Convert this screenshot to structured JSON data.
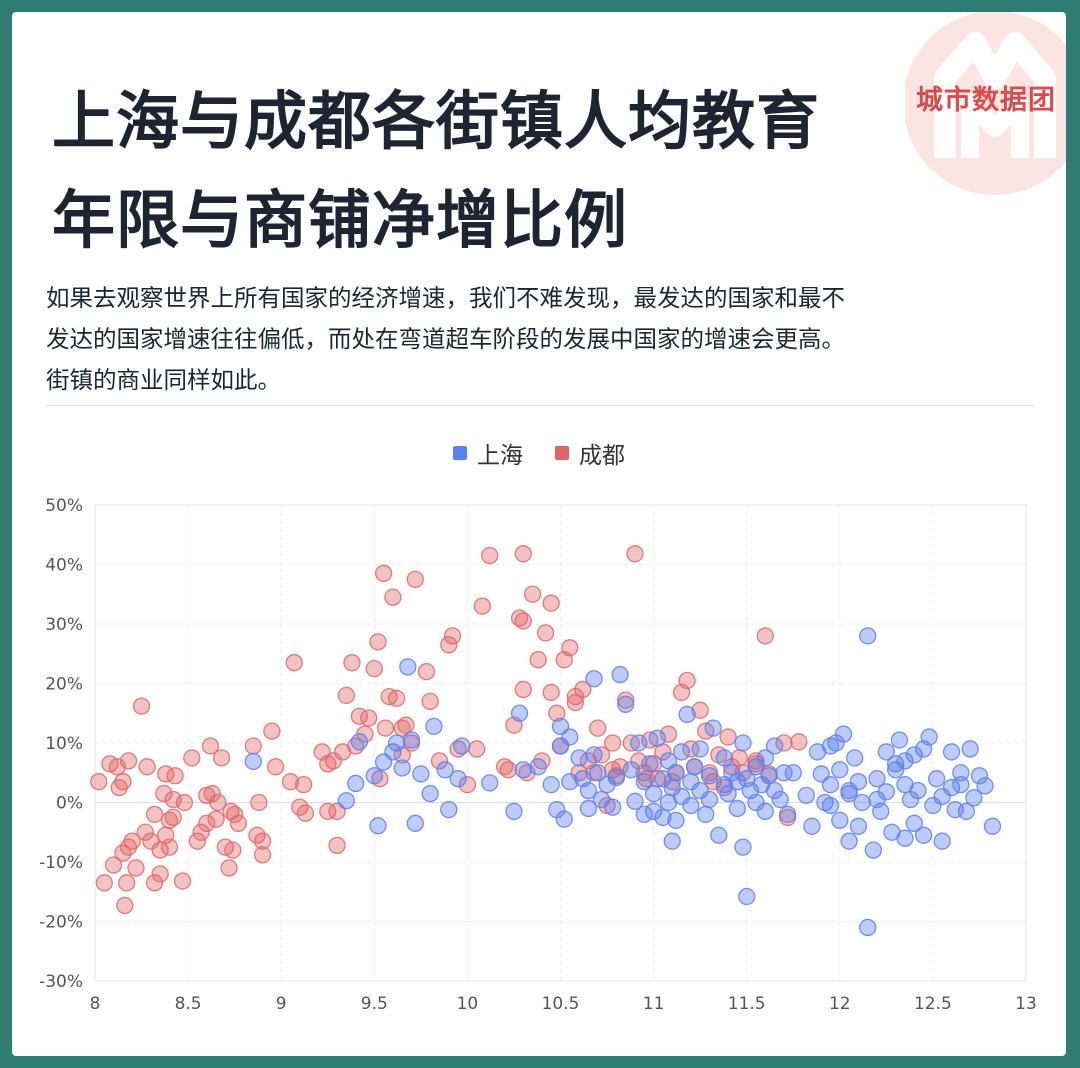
{
  "header": {
    "title_line1": "上海与成都各街镇人均教育",
    "title_line2": "年限与商铺净增比例",
    "brand": "城市数据团",
    "intro_line1": "如果去观察世界上所有国家的经济增速，我们不难发现，最发达的国家和最不",
    "intro_line2": "发达的国家增速往往偏低，而处在弯道超车阶段的发展中国家的增速会更高。",
    "intro_line3": "街镇的商业同样如此。"
  },
  "colors": {
    "shanghai": "#5a7ff0",
    "chengdu": "#e06666",
    "background": "#2e7d72"
  },
  "chart_data": {
    "type": "scatter",
    "legend_position": "top-center",
    "grid": true,
    "xlim": [
      8,
      13
    ],
    "ylim": [
      -30,
      50
    ],
    "x_ticks": [
      "8",
      "8.5",
      "9",
      "9.5",
      "10",
      "10.5",
      "11",
      "11.5",
      "12",
      "12.5",
      "13"
    ],
    "y_ticks": [
      "50%",
      "40%",
      "30%",
      "20%",
      "10%",
      "0%",
      "-10%",
      "-20%",
      "-30%"
    ],
    "series": [
      {
        "name": "上海",
        "color": "#5a7ff0",
        "points": [
          [
            8.85,
            6.9
          ],
          [
            9.35,
            0.3
          ],
          [
            9.4,
            3.2
          ],
          [
            9.42,
            10.2
          ],
          [
            9.5,
            4.5
          ],
          [
            9.52,
            -3.9
          ],
          [
            9.55,
            6.8
          ],
          [
            9.6,
            8.5
          ],
          [
            9.62,
            10
          ],
          [
            9.65,
            5.8
          ],
          [
            9.68,
            22.8
          ],
          [
            9.7,
            10.5
          ],
          [
            9.72,
            -3.5
          ],
          [
            9.75,
            4.8
          ],
          [
            9.8,
            1.5
          ],
          [
            9.82,
            12.8
          ],
          [
            9.88,
            5.5
          ],
          [
            9.9,
            -1.2
          ],
          [
            9.95,
            4
          ],
          [
            9.97,
            9.5
          ],
          [
            10.12,
            3.3
          ],
          [
            10.25,
            -1.5
          ],
          [
            10.28,
            15
          ],
          [
            10.3,
            5.5
          ],
          [
            10.38,
            6
          ],
          [
            10.45,
            3
          ],
          [
            10.48,
            -1.2
          ],
          [
            10.5,
            9.5
          ],
          [
            10.5,
            12.8
          ],
          [
            10.52,
            -2.8
          ],
          [
            10.55,
            11
          ],
          [
            10.55,
            3.5
          ],
          [
            10.6,
            7.5
          ],
          [
            10.62,
            4
          ],
          [
            10.65,
            -1
          ],
          [
            10.65,
            2
          ],
          [
            10.68,
            8
          ],
          [
            10.68,
            20.8
          ],
          [
            10.7,
            5
          ],
          [
            10.72,
            0.5
          ],
          [
            10.75,
            3
          ],
          [
            10.78,
            -0.8
          ],
          [
            10.8,
            4.2
          ],
          [
            10.82,
            21.5
          ],
          [
            10.85,
            16.5
          ],
          [
            10.88,
            5.5
          ],
          [
            10.9,
            0.2
          ],
          [
            10.92,
            10
          ],
          [
            10.95,
            -2
          ],
          [
            10.95,
            3.5
          ],
          [
            10.98,
            6.5
          ],
          [
            11.0,
            1.5
          ],
          [
            11.0,
            -1.5
          ],
          [
            11.02,
            10.8
          ],
          [
            11.05,
            4
          ],
          [
            11.05,
            -2.5
          ],
          [
            11.08,
            7
          ],
          [
            11.08,
            0
          ],
          [
            11.1,
            2.5
          ],
          [
            11.1,
            -6.5
          ],
          [
            11.12,
            5
          ],
          [
            11.12,
            -3
          ],
          [
            11.15,
            8.5
          ],
          [
            11.15,
            1
          ],
          [
            11.18,
            14.8
          ],
          [
            11.2,
            3.5
          ],
          [
            11.2,
            -0.5
          ],
          [
            11.22,
            6
          ],
          [
            11.25,
            2
          ],
          [
            11.25,
            9
          ],
          [
            11.28,
            -2
          ],
          [
            11.3,
            4.5
          ],
          [
            11.3,
            0.5
          ],
          [
            11.32,
            12.5
          ],
          [
            11.35,
            -5.5
          ],
          [
            11.38,
            3
          ],
          [
            11.38,
            7.5
          ],
          [
            11.4,
            1.5
          ],
          [
            11.42,
            5
          ],
          [
            11.45,
            -1
          ],
          [
            11.45,
            3.5
          ],
          [
            11.48,
            -7.5
          ],
          [
            11.48,
            10
          ],
          [
            11.5,
            4
          ],
          [
            11.5,
            -15.8
          ],
          [
            11.52,
            2
          ],
          [
            11.55,
            6
          ],
          [
            11.55,
            0
          ],
          [
            11.58,
            3
          ],
          [
            11.6,
            7.5
          ],
          [
            11.6,
            -1.5
          ],
          [
            11.62,
            4.5
          ],
          [
            11.65,
            9.5
          ],
          [
            11.65,
            2
          ],
          [
            11.68,
            0.5
          ],
          [
            11.7,
            5
          ],
          [
            11.72,
            -2
          ],
          [
            11.75,
            5
          ],
          [
            11.82,
            1.2
          ],
          [
            11.85,
            -4
          ],
          [
            11.88,
            8.5
          ],
          [
            11.9,
            4.8
          ],
          [
            11.92,
            0
          ],
          [
            11.95,
            9.5
          ],
          [
            11.95,
            3
          ],
          [
            11.98,
            10
          ],
          [
            12.0,
            -3
          ],
          [
            12.0,
            5.5
          ],
          [
            12.02,
            11.5
          ],
          [
            12.05,
            -6.5
          ],
          [
            12.05,
            1.5
          ],
          [
            12.08,
            7.5
          ],
          [
            12.1,
            -4
          ],
          [
            12.1,
            3.5
          ],
          [
            12.12,
            0
          ],
          [
            12.15,
            28
          ],
          [
            12.15,
            -21
          ],
          [
            12.18,
            -8
          ],
          [
            12.2,
            4
          ],
          [
            12.22,
            -1.5
          ],
          [
            12.25,
            8.5
          ],
          [
            12.25,
            1.8
          ],
          [
            12.28,
            -5
          ],
          [
            12.3,
            5.5
          ],
          [
            12.32,
            10.5
          ],
          [
            12.35,
            3
          ],
          [
            12.35,
            -6
          ],
          [
            12.38,
            0.5
          ],
          [
            12.4,
            8
          ],
          [
            12.42,
            2
          ],
          [
            12.45,
            -5.5
          ],
          [
            12.48,
            11
          ],
          [
            12.5,
            -0.5
          ],
          [
            12.52,
            4
          ],
          [
            12.55,
            1
          ],
          [
            12.6,
            8.5
          ],
          [
            12.62,
            -1.2
          ],
          [
            12.65,
            3
          ],
          [
            12.7,
            9
          ],
          [
            12.75,
            4.5
          ],
          [
            12.78,
            2.8
          ],
          [
            12.82,
            -4
          ],
          [
            12.55,
            -6.5
          ],
          [
            12.45,
            9
          ],
          [
            12.6,
            2.5
          ],
          [
            12.4,
            -3.5
          ],
          [
            12.3,
            6.5
          ],
          [
            12.68,
            -1.5
          ],
          [
            12.72,
            0.8
          ],
          [
            12.2,
            0.5
          ],
          [
            11.95,
            -0.5
          ],
          [
            12.65,
            5
          ],
          [
            12.35,
            7
          ],
          [
            12.05,
            2
          ]
        ]
      },
      {
        "name": "成都",
        "color": "#e06666",
        "points": [
          [
            8.02,
            3.5
          ],
          [
            8.05,
            -13.5
          ],
          [
            8.08,
            6.5
          ],
          [
            8.1,
            -10.5
          ],
          [
            8.12,
            6
          ],
          [
            8.13,
            2.5
          ],
          [
            8.15,
            -8.5
          ],
          [
            8.15,
            3.5
          ],
          [
            8.16,
            -17.3
          ],
          [
            8.17,
            -13.5
          ],
          [
            8.18,
            -7.5
          ],
          [
            8.18,
            7
          ],
          [
            8.2,
            -6.5
          ],
          [
            8.22,
            -11
          ],
          [
            8.25,
            16.2
          ],
          [
            8.27,
            -5
          ],
          [
            8.28,
            6
          ],
          [
            8.3,
            -6.5
          ],
          [
            8.32,
            -2
          ],
          [
            8.32,
            -13.5
          ],
          [
            8.35,
            -8
          ],
          [
            8.35,
            -12
          ],
          [
            8.37,
            1.5
          ],
          [
            8.38,
            -5.5
          ],
          [
            8.38,
            4.8
          ],
          [
            8.4,
            -3
          ],
          [
            8.4,
            -7.5
          ],
          [
            8.42,
            0.5
          ],
          [
            8.42,
            -2.5
          ],
          [
            8.43,
            4.5
          ],
          [
            8.47,
            -13.2
          ],
          [
            8.48,
            0
          ],
          [
            8.52,
            7.5
          ],
          [
            8.55,
            -6.5
          ],
          [
            8.57,
            -5
          ],
          [
            8.6,
            1.2
          ],
          [
            8.6,
            -3.5
          ],
          [
            8.62,
            9.5
          ],
          [
            8.63,
            1.5
          ],
          [
            8.65,
            -2.8
          ],
          [
            8.66,
            0
          ],
          [
            8.68,
            7.5
          ],
          [
            8.7,
            -7.5
          ],
          [
            8.72,
            -11
          ],
          [
            8.73,
            -1.5
          ],
          [
            8.74,
            -8
          ],
          [
            8.75,
            -2
          ],
          [
            8.77,
            -3.5
          ],
          [
            8.85,
            9.5
          ],
          [
            8.87,
            -5.5
          ],
          [
            8.88,
            0
          ],
          [
            8.9,
            -6.5
          ],
          [
            8.9,
            -8.8
          ],
          [
            8.95,
            12
          ],
          [
            8.97,
            6
          ],
          [
            9.05,
            3.5
          ],
          [
            9.07,
            23.5
          ],
          [
            9.1,
            -0.8
          ],
          [
            9.12,
            3
          ],
          [
            9.13,
            -1.8
          ],
          [
            9.22,
            8.5
          ],
          [
            9.25,
            6.5
          ],
          [
            9.25,
            -1.5
          ],
          [
            9.28,
            7
          ],
          [
            9.3,
            -7.2
          ],
          [
            9.3,
            -1.5
          ],
          [
            9.33,
            8.5
          ],
          [
            9.35,
            18
          ],
          [
            9.38,
            23.5
          ],
          [
            9.4,
            9.5
          ],
          [
            9.42,
            14.5
          ],
          [
            9.45,
            11.5
          ],
          [
            9.47,
            14.2
          ],
          [
            9.5,
            22.5
          ],
          [
            9.52,
            27
          ],
          [
            9.53,
            4
          ],
          [
            9.55,
            38.5
          ],
          [
            9.56,
            12.5
          ],
          [
            9.58,
            17.8
          ],
          [
            9.6,
            34.5
          ],
          [
            9.62,
            17.5
          ],
          [
            9.65,
            8
          ],
          [
            9.67,
            13
          ],
          [
            9.7,
            10
          ],
          [
            9.72,
            37.5
          ],
          [
            9.78,
            22
          ],
          [
            9.8,
            17
          ],
          [
            9.85,
            7
          ],
          [
            9.9,
            26.5
          ],
          [
            9.92,
            28
          ],
          [
            9.95,
            9
          ],
          [
            10.0,
            3
          ],
          [
            10.05,
            9
          ],
          [
            10.08,
            33
          ],
          [
            10.12,
            41.5
          ],
          [
            10.2,
            6
          ],
          [
            10.22,
            5.5
          ],
          [
            10.25,
            13
          ],
          [
            10.28,
            31
          ],
          [
            10.3,
            30.5
          ],
          [
            10.3,
            41.8
          ],
          [
            10.3,
            19
          ],
          [
            10.35,
            35
          ],
          [
            10.38,
            24
          ],
          [
            10.4,
            7
          ],
          [
            10.42,
            28.5
          ],
          [
            10.45,
            33.5
          ],
          [
            10.45,
            18.5
          ],
          [
            10.48,
            15
          ],
          [
            10.5,
            9.5
          ],
          [
            10.52,
            24
          ],
          [
            10.55,
            26
          ],
          [
            10.58,
            16.8
          ],
          [
            10.6,
            5
          ],
          [
            10.62,
            19
          ],
          [
            10.65,
            7
          ],
          [
            10.68,
            5
          ],
          [
            10.7,
            12.5
          ],
          [
            10.72,
            8
          ],
          [
            10.75,
            -0.5
          ],
          [
            10.78,
            10
          ],
          [
            10.8,
            4.5
          ],
          [
            10.82,
            6
          ],
          [
            10.85,
            17.2
          ],
          [
            10.88,
            10
          ],
          [
            10.9,
            41.8
          ],
          [
            10.92,
            7
          ],
          [
            10.95,
            5
          ],
          [
            10.98,
            10.5
          ],
          [
            11.0,
            6.5
          ],
          [
            11.02,
            4
          ],
          [
            11.05,
            8.5
          ],
          [
            11.08,
            11.5
          ],
          [
            11.1,
            3.5
          ],
          [
            11.12,
            5
          ],
          [
            11.15,
            18.5
          ],
          [
            11.18,
            20.5
          ],
          [
            11.2,
            9
          ],
          [
            11.22,
            6
          ],
          [
            11.25,
            15.5
          ],
          [
            11.28,
            12
          ],
          [
            11.3,
            5
          ],
          [
            11.32,
            3.5
          ],
          [
            11.35,
            8
          ],
          [
            11.4,
            11
          ],
          [
            11.42,
            6
          ],
          [
            11.48,
            5
          ],
          [
            11.55,
            6.5
          ],
          [
            11.6,
            28
          ],
          [
            11.62,
            4.8
          ],
          [
            11.7,
            10
          ],
          [
            11.72,
            -2.5
          ],
          [
            11.78,
            10.2
          ],
          [
            11.55,
            7
          ],
          [
            10.96,
            4
          ],
          [
            11.38,
            2.5
          ],
          [
            10.58,
            17.8
          ],
          [
            9.65,
            12.5
          ],
          [
            11.46,
            7.5
          ],
          [
            10.78,
            5.5
          ],
          [
            10.32,
            5
          ]
        ]
      }
    ]
  }
}
